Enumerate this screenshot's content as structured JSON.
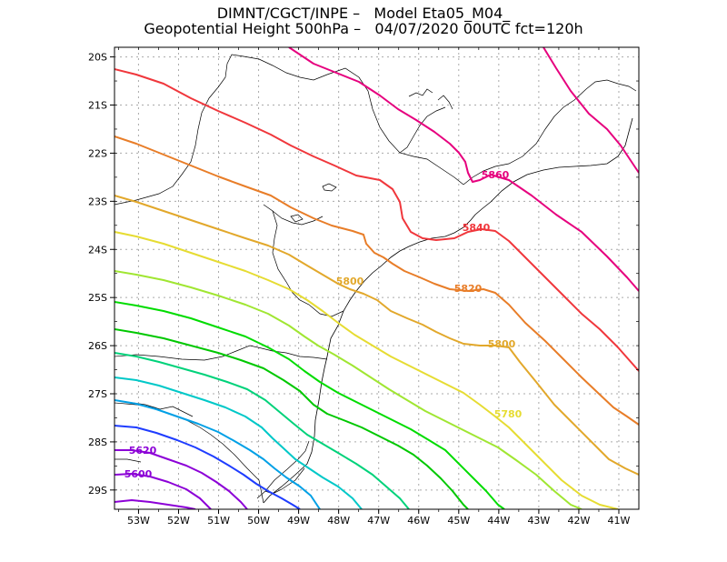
{
  "title": {
    "line1": "DIMNT/CGCT/INPE –   Model Eta05_M04_",
    "line2": "Geopotential Height 500hPa –   04/07/2020 00UTC fct=120h"
  },
  "axes": {
    "lon_labels": [
      "53W",
      "52W",
      "51W",
      "50W",
      "49W",
      "48W",
      "47W",
      "46W",
      "45W",
      "44W",
      "43W",
      "42W",
      "41W"
    ],
    "lat_labels": [
      "20S",
      "21S",
      "22S",
      "23S",
      "24S",
      "25S",
      "26S",
      "27S",
      "28S",
      "29S"
    ]
  },
  "chart_data": {
    "type": "contour",
    "variable": "Geopotential Height 500hPa",
    "contour_interval": 20,
    "lon_range": [
      -53.6,
      -40.5
    ],
    "lat_range": [
      -29.4,
      -19.8
    ],
    "labels": [
      {
        "text": "5860",
        "level": 5860,
        "color": "#e6007e"
      },
      {
        "text": "5840",
        "level": 5840,
        "color": "#f0373c"
      },
      {
        "text": "5820",
        "level": 5820,
        "color": "#e87d28"
      },
      {
        "text": "5800",
        "level": 5800,
        "color": "#e2a82b"
      },
      {
        "text": "5800",
        "level": 5800,
        "color": "#e2a82b"
      },
      {
        "text": "5780",
        "level": 5780,
        "color": "#e6dc32"
      },
      {
        "text": "5620",
        "level": 5620,
        "color": "#8c00d7"
      },
      {
        "text": "5600",
        "level": 5600,
        "color": "#8c00d7"
      }
    ],
    "levels": [
      {
        "value": 5860,
        "color": "#e6007e"
      },
      {
        "value": 5840,
        "color": "#f0373c"
      },
      {
        "value": 5820,
        "color": "#e87d28"
      },
      {
        "value": 5800,
        "color": "#e2a82b"
      },
      {
        "value": 5780,
        "color": "#e6dc32"
      },
      {
        "value": 5760,
        "color": "#a0e632"
      },
      {
        "value": 5740,
        "color": "#00dc00"
      },
      {
        "value": 5720,
        "color": "#00c800"
      },
      {
        "value": 5700,
        "color": "#00d27a"
      },
      {
        "value": 5680,
        "color": "#00c8c8"
      },
      {
        "value": 5660,
        "color": "#00a0e6"
      },
      {
        "value": 5640,
        "color": "#1e3cff"
      },
      {
        "value": 5620,
        "color": "#8c00d7"
      },
      {
        "value": 5600,
        "color": "#8c00d7"
      }
    ]
  }
}
